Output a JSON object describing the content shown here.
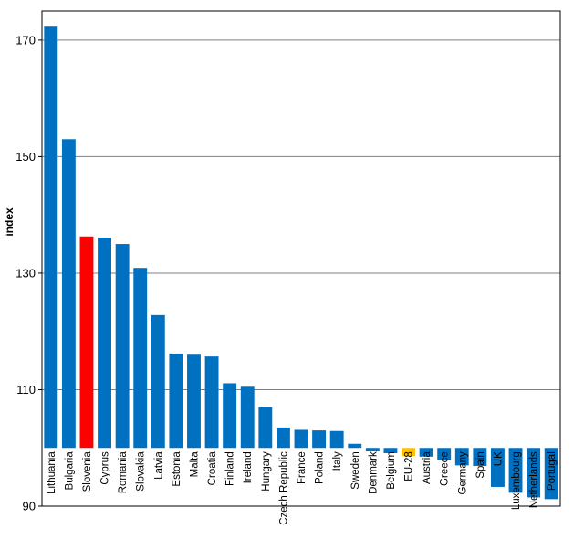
{
  "chart_data": {
    "type": "bar",
    "ylabel": "index",
    "ylim": [
      90,
      175
    ],
    "yticks": [
      90,
      110,
      130,
      150,
      170
    ],
    "baseline": 100,
    "grid": true,
    "categories": [
      "Lithuania",
      "Bulgaria",
      "Slovenia",
      "Cyprus",
      "Romania",
      "Slovakia",
      "Latvia",
      "Estonia",
      "Malta",
      "Croatia",
      "Finland",
      "Ireland",
      "Hungary",
      "Czech Republic",
      "France",
      "Poland",
      "Italy",
      "Sweden",
      "Denmark",
      "Belgium",
      "EU-28",
      "Austria",
      "Greece",
      "Germany",
      "Spain",
      "UK",
      "Luxembourg",
      "Netherlands",
      "Portugal"
    ],
    "values": [
      172.3,
      153.0,
      136.3,
      136.1,
      135.0,
      130.9,
      122.8,
      116.2,
      116.0,
      115.7,
      111.1,
      110.5,
      107.0,
      103.5,
      103.1,
      103.0,
      102.9,
      100.7,
      99.4,
      99.1,
      98.6,
      98.5,
      97.9,
      97.0,
      96.9,
      93.3,
      92.3,
      91.5,
      91.2
    ],
    "colors": {
      "default": "#0070c0",
      "highlight": "#ff0000",
      "aggregate": "#ffc000"
    },
    "highlight_category": "Slovenia",
    "aggregate_category": "EU-28"
  }
}
